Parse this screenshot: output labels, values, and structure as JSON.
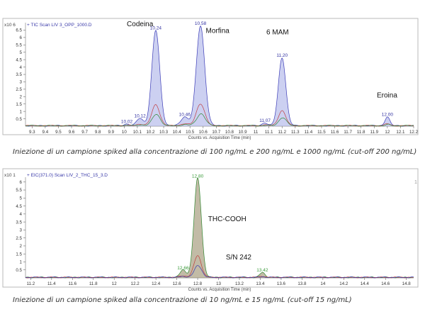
{
  "chart_data": [
    {
      "type": "line",
      "title": "+ TIC Scan LIV 3_OPP_1000.D",
      "y_multiplier": "x10 6",
      "xlabel": "Counts vs. Acquisition Time (min)",
      "xlim": [
        9.25,
        12.2
      ],
      "ylim": [
        0,
        7.0
      ],
      "x_ticks": [
        "9.3",
        "9.4",
        "9.5",
        "9.6",
        "9.7",
        "9.8",
        "9.9",
        "10",
        "10.1",
        "10.2",
        "10.3",
        "10.4",
        "10.5",
        "10.6",
        "10.7",
        "10.8",
        "10.9",
        "11",
        "11.1",
        "11.2",
        "11.3",
        "11.4",
        "11.5",
        "11.6",
        "11.7",
        "11.8",
        "11.9",
        "12",
        "12.1",
        "12.2"
      ],
      "y_ticks": [
        "0.5",
        "1",
        "1.5",
        "2",
        "2.5",
        "3",
        "3.5",
        "4",
        "4.5",
        "5",
        "5.5",
        "6",
        "6.5"
      ],
      "peaks": [
        {
          "rt": 10.02,
          "height": 0.12,
          "width": 0.02,
          "label": "10.02"
        },
        {
          "rt": 10.12,
          "height": 0.5,
          "width": 0.025,
          "label": "10.12"
        },
        {
          "rt": 10.24,
          "height": 6.45,
          "width": 0.03,
          "label": "10.24"
        },
        {
          "rt": 10.46,
          "height": 0.6,
          "width": 0.028,
          "label": "10.46"
        },
        {
          "rt": 10.58,
          "height": 6.75,
          "width": 0.032,
          "label": "10.58"
        },
        {
          "rt": 11.07,
          "height": 0.2,
          "width": 0.02,
          "label": "11.07"
        },
        {
          "rt": 11.2,
          "height": 4.6,
          "width": 0.028,
          "label": "11.20"
        },
        {
          "rt": 12.0,
          "height": 0.6,
          "width": 0.018,
          "label": "12.00"
        }
      ],
      "annotations": [
        {
          "text": "Codeina",
          "x": 10.02,
          "y": 6.75
        },
        {
          "text": "Morfina",
          "x": 10.62,
          "y": 6.3
        },
        {
          "text": "6 MAM",
          "x": 11.08,
          "y": 6.2
        },
        {
          "text": "Eroina",
          "x": 11.92,
          "y": 1.95
        }
      ],
      "series_colors": [
        "#2a2ab0",
        "#c03030",
        "#208020"
      ],
      "fill_color": "#aab0e8",
      "caption": "Iniezione di un campione spiked alla concentrazione di 100 ng/mL e 200 ng/mL e 1000 ng/mL (cut-off 200 ng/mL)"
    },
    {
      "type": "line",
      "title": "+ EIC(371.0) Scan LIV_2_THC_15_3.D",
      "y_multiplier": "x10 1",
      "xlabel": "Counts vs. Acquisition Time (min)",
      "xlim": [
        11.15,
        14.87
      ],
      "ylim": [
        0,
        6.3
      ],
      "x_ticks": [
        "11.2",
        "11.4",
        "11.6",
        "11.8",
        "12",
        "12.2",
        "12.4",
        "12.6",
        "12.8",
        "13",
        "13.2",
        "13.4",
        "13.6",
        "13.8",
        "14",
        "14.2",
        "14.4",
        "14.6",
        "14.8"
      ],
      "y_ticks": [
        "0.5",
        "1",
        "1.5",
        "2",
        "2.5",
        "3",
        "3.5",
        "4",
        "4.5",
        "5",
        "5.5",
        "6"
      ],
      "peaks": [
        {
          "rt": 12.66,
          "height": 0.45,
          "width": 0.03,
          "label": "12.66"
        },
        {
          "rt": 12.8,
          "height": 6.2,
          "width": 0.035,
          "label": "12.80"
        },
        {
          "rt": 13.42,
          "height": 0.3,
          "width": 0.025,
          "label": "13.42"
        }
      ],
      "annotations": [
        {
          "text": "THC-COOH",
          "x": 12.9,
          "y": 3.55
        },
        {
          "text": "S/N 242",
          "x": 13.07,
          "y": 1.15
        }
      ],
      "right_edge_label": "1",
      "series_colors": [
        "#208020",
        "#c03030",
        "#2a2ab0"
      ],
      "fill_color": "#9a8e6a",
      "caption": "Iniezione di un campione spiked alla concentrazione di 10 ng/mL e 15 ng/mL (cut-off 15 ng/mL)"
    }
  ]
}
